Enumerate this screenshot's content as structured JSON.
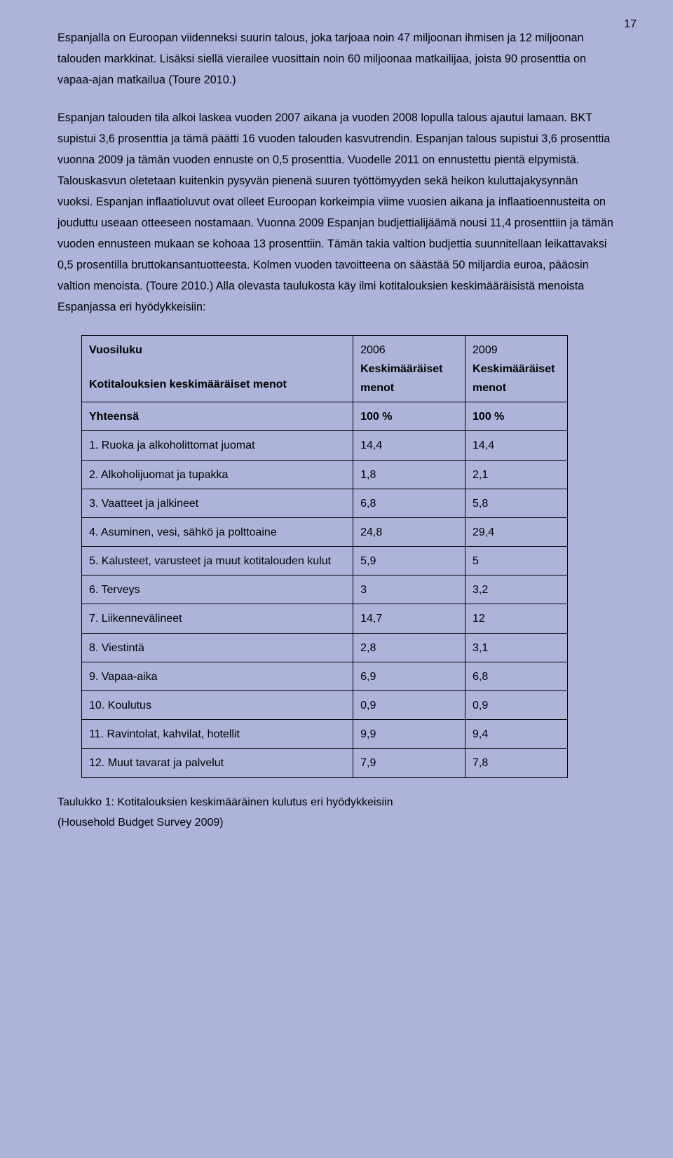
{
  "page_number": "17",
  "paragraphs": {
    "p1": "Espanjalla on Euroopan viidenneksi suurin talous, joka tarjoaa noin 47 miljoonan ihmisen ja 12 miljoonan talouden markkinat. Lisäksi siellä vierailee vuosittain noin 60 miljoonaa matkailijaa, joista 90 prosenttia on vapaa-ajan matkailua (Toure 2010.)",
    "p2": "Espanjan talouden tila alkoi laskea vuoden 2007 aikana ja vuoden 2008 lopulla talous ajautui lamaan. BKT supistui 3,6 prosenttia ja tämä päätti 16 vuoden talouden kasvutrendin. Espanjan talous supistui 3,6 prosenttia vuonna 2009 ja tämän vuoden ennuste on 0,5 prosenttia. Vuodelle 2011 on ennustettu pientä elpymistä. Talouskasvun oletetaan kuitenkin pysyvän pienenä suuren työttömyyden sekä heikon kuluttajakysynnän vuoksi. Espanjan inflaatioluvut ovat olleet Euroopan korkeimpia viime vuosien aikana ja   inflaatioennusteita on jouduttu useaan otteeseen nostamaan. Vuonna 2009 Espanjan budjettialijäämä nousi 11,4 prosenttiin ja tämän vuoden ennusteen mukaan se kohoaa 13 prosenttiin. Tämän takia valtion budjettia suunnitellaan leikattavaksi 0,5 prosentilla bruttokansantuotteesta. Kolmen vuoden tavoitteena on säästää 50 miljardia euroa, pääosin valtion menoista. (Toure 2010.) Alla olevasta taulukosta käy ilmi kotitalouksien keskimääräisistä menoista Espanjassa eri hyödykkeisiin:"
  },
  "table": {
    "header": {
      "col0_line1": "Vuosiluku",
      "col0_line2": "Kotitalouksien keskimääräiset menot",
      "col1_line1": "2006",
      "col1_line2a": "Keskimääräiset",
      "col1_line2b": "menot",
      "col2_line1": "2009",
      "col2_line2a": "Keskimääräiset",
      "col2_line2b": "menot"
    },
    "rows": [
      {
        "label": "Yhteensä",
        "v2006": "100 %",
        "v2009": "100 %",
        "bold": true
      },
      {
        "label": "1. Ruoka ja alkoholittomat juomat",
        "v2006": "14,4",
        "v2009": "14,4",
        "bold": false
      },
      {
        "label": "2. Alkoholijuomat ja tupakka",
        "v2006": "1,8",
        "v2009": "2,1",
        "bold": false
      },
      {
        "label": "3. Vaatteet ja jalkineet",
        "v2006": "6,8",
        "v2009": "5,8",
        "bold": false
      },
      {
        "label": "4. Asuminen, vesi, sähkö ja polttoaine",
        "v2006": "24,8",
        "v2009": "29,4",
        "bold": false
      },
      {
        "label": "5. Kalusteet, varusteet ja muut kotitalouden kulut",
        "v2006": "5,9",
        "v2009": "5",
        "bold": false
      },
      {
        "label": "6. Terveys",
        "v2006": "3",
        "v2009": "3,2",
        "bold": false
      },
      {
        "label": "7. Liikennevälineet",
        "v2006": "14,7",
        "v2009": "12",
        "bold": false
      },
      {
        "label": "8. Viestintä",
        "v2006": "2,8",
        "v2009": "3,1",
        "bold": false
      },
      {
        "label": "9. Vapaa-aika",
        "v2006": "6,9",
        "v2009": "6,8",
        "bold": false
      },
      {
        "label": "10. Koulutus",
        "v2006": "0,9",
        "v2009": "0,9",
        "bold": false
      },
      {
        "label": "11. Ravintolat, kahvilat, hotellit",
        "v2006": "9,9",
        "v2009": "9,4",
        "bold": false
      },
      {
        "label": "12. Muut tavarat ja palvelut",
        "v2006": "7,9",
        "v2009": "7,8",
        "bold": false
      }
    ]
  },
  "caption_line1": "Taulukko 1: Kotitalouksien keskimääräinen kulutus eri hyödykkeisiin",
  "caption_line2": "(Household Budget Survey 2009)"
}
